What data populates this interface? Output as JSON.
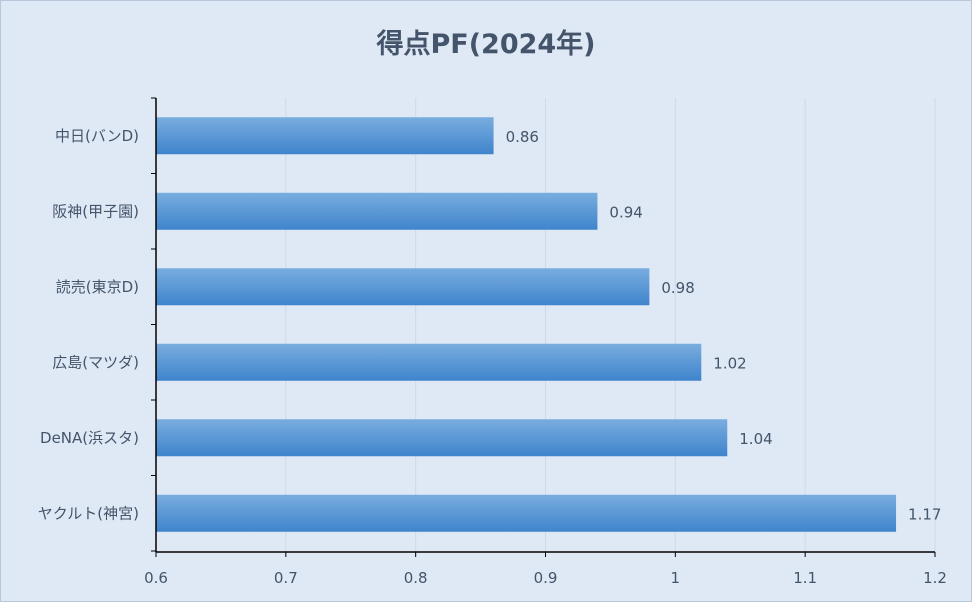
{
  "chart_data": {
    "type": "bar",
    "orientation": "horizontal",
    "title": "得点PF(2024年)",
    "xlabel": "",
    "ylabel": "",
    "categories": [
      "中日(バンD)",
      "阪神(甲子園)",
      "読売(東京D)",
      "広島(マツダ)",
      "DeNA(浜スタ)",
      "ヤクルト(神宮)"
    ],
    "values": [
      0.86,
      0.94,
      0.98,
      1.02,
      1.04,
      1.17
    ],
    "value_labels": [
      "0.86",
      "0.94",
      "0.98",
      "1.02",
      "1.04",
      "1.17"
    ],
    "xlim": [
      0.6,
      1.2
    ],
    "x_ticks": [
      0.6,
      0.7,
      0.8,
      0.9,
      1.0,
      1.1,
      1.2
    ],
    "x_tick_labels": [
      "0.6",
      "0.7",
      "0.8",
      "0.9",
      "1",
      "1.1",
      "1.2"
    ],
    "grid": "vertical",
    "legend": "none",
    "colors": {
      "bar_top": "#79addf",
      "bar_bottom": "#3f84cc",
      "text": "#44546a",
      "grid": "#cfd9e6",
      "axis": "#000000",
      "background": "#dfe9f5"
    }
  }
}
